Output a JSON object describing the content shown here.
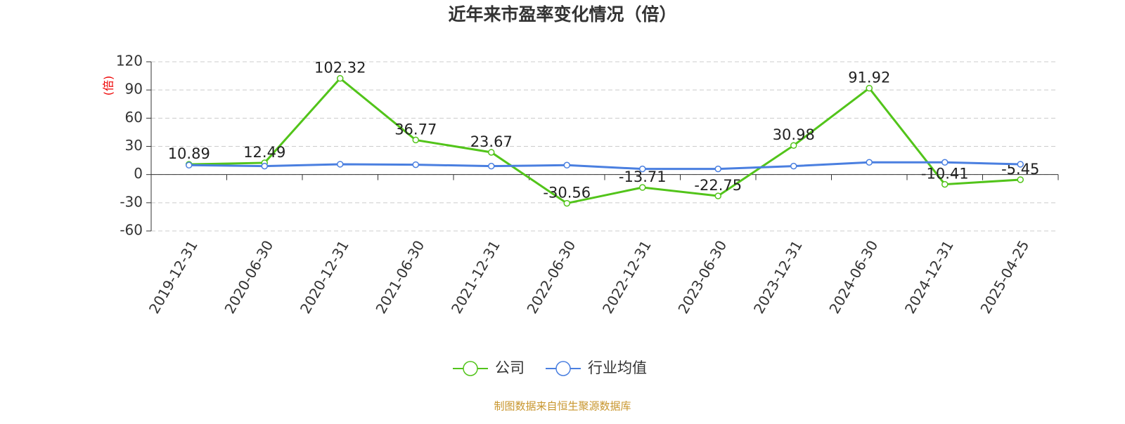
{
  "chart_data": {
    "type": "line",
    "title": "近年来市盈率变化情况（倍）",
    "y_label": "(倍)",
    "source": "制图数据来自恒生聚源数据库",
    "categories": [
      "2019-12-31",
      "2020-06-30",
      "2020-12-31",
      "2021-06-30",
      "2021-12-31",
      "2022-06-30",
      "2022-12-31",
      "2023-06-30",
      "2023-12-31",
      "2024-06-30",
      "2024-12-31",
      "2025-04-25"
    ],
    "series": [
      {
        "name": "公司",
        "color": "#52c41a",
        "show_labels": true,
        "values": [
          10.89,
          12.49,
          102.32,
          36.77,
          23.67,
          -30.56,
          -13.71,
          -22.75,
          30.98,
          91.92,
          -10.41,
          -5.45
        ]
      },
      {
        "name": "行业均值",
        "color": "#4a7fe0",
        "show_labels": false,
        "values": [
          10,
          9,
          11,
          10.5,
          9,
          10,
          6,
          6,
          9,
          13,
          13,
          11
        ]
      }
    ],
    "ylim": [
      -60,
      120
    ],
    "yticks": [
      -60,
      -30,
      0,
      30,
      60,
      90,
      120
    ],
    "grid": true,
    "legend": "bottom"
  }
}
